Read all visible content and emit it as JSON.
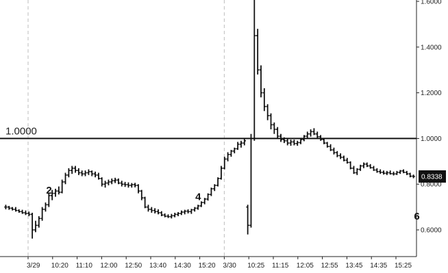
{
  "chart_data": {
    "type": "ohlc",
    "title": "",
    "xlabel": "",
    "ylabel": "",
    "ylim": [
      0.55,
      1.62
    ],
    "y_ticks": [
      {
        "value": 1.6,
        "label": "1.6000"
      },
      {
        "value": 1.4,
        "label": "1.4000"
      },
      {
        "value": 1.2,
        "label": "1.2000"
      },
      {
        "value": 1.0,
        "label": "1.0000"
      },
      {
        "value": 0.8,
        "label": "0.8000"
      },
      {
        "value": 0.6,
        "label": "0.6000"
      }
    ],
    "x_ticks": [
      "3/29",
      "10:20",
      "11:10",
      "12:00",
      "12:50",
      "13:40",
      "14:30",
      "15:20",
      "3/30",
      "10:25",
      "11:15",
      "12:05",
      "12:55",
      "13:45",
      "14:35",
      "15:25"
    ],
    "session_breaks": [
      "3/29",
      "3/30"
    ],
    "reference_line": {
      "value": 1.0,
      "label": "1.0000"
    },
    "last_price": {
      "value": 0.8338,
      "label": "0.8338"
    },
    "wave_labels": [
      {
        "text": "2",
        "x": 13,
        "y": 0.758
      },
      {
        "text": "4",
        "x": 58,
        "y": 0.73
      },
      {
        "text": "6",
        "x": 124,
        "y": 0.645
      }
    ],
    "grid": false,
    "colors": {
      "bars": "#111111",
      "reference_line": "#111111",
      "session_break": "#bdbdbd",
      "price_box": "#111111"
    },
    "bars": [
      {
        "o": 0.7,
        "h": 0.71,
        "l": 0.69,
        "c": 0.7
      },
      {
        "o": 0.7,
        "h": 0.705,
        "l": 0.688,
        "c": 0.695
      },
      {
        "o": 0.695,
        "h": 0.7,
        "l": 0.685,
        "c": 0.69
      },
      {
        "o": 0.69,
        "h": 0.7,
        "l": 0.68,
        "c": 0.685
      },
      {
        "o": 0.685,
        "h": 0.69,
        "l": 0.675,
        "c": 0.68
      },
      {
        "o": 0.68,
        "h": 0.688,
        "l": 0.67,
        "c": 0.675
      },
      {
        "o": 0.675,
        "h": 0.685,
        "l": 0.665,
        "c": 0.672
      },
      {
        "o": 0.672,
        "h": 0.68,
        "l": 0.66,
        "c": 0.668
      },
      {
        "o": 0.668,
        "h": 0.675,
        "l": 0.562,
        "c": 0.6
      },
      {
        "o": 0.6,
        "h": 0.64,
        "l": 0.59,
        "c": 0.62
      },
      {
        "o": 0.62,
        "h": 0.66,
        "l": 0.61,
        "c": 0.65
      },
      {
        "o": 0.65,
        "h": 0.7,
        "l": 0.64,
        "c": 0.69
      },
      {
        "o": 0.69,
        "h": 0.72,
        "l": 0.68,
        "c": 0.71
      },
      {
        "o": 0.71,
        "h": 0.76,
        "l": 0.7,
        "c": 0.75
      },
      {
        "o": 0.75,
        "h": 0.775,
        "l": 0.73,
        "c": 0.76
      },
      {
        "o": 0.76,
        "h": 0.78,
        "l": 0.745,
        "c": 0.77
      },
      {
        "o": 0.77,
        "h": 0.79,
        "l": 0.755,
        "c": 0.765
      },
      {
        "o": 0.765,
        "h": 0.82,
        "l": 0.76,
        "c": 0.81
      },
      {
        "o": 0.81,
        "h": 0.85,
        "l": 0.8,
        "c": 0.84
      },
      {
        "o": 0.84,
        "h": 0.87,
        "l": 0.83,
        "c": 0.86
      },
      {
        "o": 0.86,
        "h": 0.88,
        "l": 0.845,
        "c": 0.87
      },
      {
        "o": 0.87,
        "h": 0.88,
        "l": 0.85,
        "c": 0.86
      },
      {
        "o": 0.86,
        "h": 0.87,
        "l": 0.84,
        "c": 0.85
      },
      {
        "o": 0.85,
        "h": 0.86,
        "l": 0.835,
        "c": 0.845
      },
      {
        "o": 0.845,
        "h": 0.86,
        "l": 0.835,
        "c": 0.85
      },
      {
        "o": 0.85,
        "h": 0.865,
        "l": 0.84,
        "c": 0.855
      },
      {
        "o": 0.855,
        "h": 0.86,
        "l": 0.835,
        "c": 0.845
      },
      {
        "o": 0.845,
        "h": 0.855,
        "l": 0.83,
        "c": 0.84
      },
      {
        "o": 0.84,
        "h": 0.85,
        "l": 0.82,
        "c": 0.825
      },
      {
        "o": 0.825,
        "h": 0.83,
        "l": 0.79,
        "c": 0.8
      },
      {
        "o": 0.8,
        "h": 0.815,
        "l": 0.785,
        "c": 0.805
      },
      {
        "o": 0.805,
        "h": 0.82,
        "l": 0.795,
        "c": 0.81
      },
      {
        "o": 0.81,
        "h": 0.825,
        "l": 0.8,
        "c": 0.815
      },
      {
        "o": 0.815,
        "h": 0.828,
        "l": 0.805,
        "c": 0.818
      },
      {
        "o": 0.818,
        "h": 0.825,
        "l": 0.8,
        "c": 0.805
      },
      {
        "o": 0.805,
        "h": 0.815,
        "l": 0.79,
        "c": 0.8
      },
      {
        "o": 0.8,
        "h": 0.81,
        "l": 0.788,
        "c": 0.798
      },
      {
        "o": 0.798,
        "h": 0.808,
        "l": 0.785,
        "c": 0.795
      },
      {
        "o": 0.795,
        "h": 0.805,
        "l": 0.785,
        "c": 0.798
      },
      {
        "o": 0.798,
        "h": 0.806,
        "l": 0.786,
        "c": 0.795
      },
      {
        "o": 0.795,
        "h": 0.8,
        "l": 0.76,
        "c": 0.77
      },
      {
        "o": 0.77,
        "h": 0.775,
        "l": 0.73,
        "c": 0.74
      },
      {
        "o": 0.74,
        "h": 0.745,
        "l": 0.695,
        "c": 0.7
      },
      {
        "o": 0.7,
        "h": 0.71,
        "l": 0.68,
        "c": 0.69
      },
      {
        "o": 0.69,
        "h": 0.7,
        "l": 0.675,
        "c": 0.685
      },
      {
        "o": 0.685,
        "h": 0.695,
        "l": 0.672,
        "c": 0.68
      },
      {
        "o": 0.68,
        "h": 0.69,
        "l": 0.668,
        "c": 0.675
      },
      {
        "o": 0.675,
        "h": 0.682,
        "l": 0.66,
        "c": 0.665
      },
      {
        "o": 0.665,
        "h": 0.672,
        "l": 0.655,
        "c": 0.66
      },
      {
        "o": 0.66,
        "h": 0.668,
        "l": 0.652,
        "c": 0.658
      },
      {
        "o": 0.658,
        "h": 0.67,
        "l": 0.65,
        "c": 0.662
      },
      {
        "o": 0.662,
        "h": 0.675,
        "l": 0.655,
        "c": 0.668
      },
      {
        "o": 0.668,
        "h": 0.678,
        "l": 0.66,
        "c": 0.672
      },
      {
        "o": 0.672,
        "h": 0.685,
        "l": 0.665,
        "c": 0.678
      },
      {
        "o": 0.678,
        "h": 0.688,
        "l": 0.668,
        "c": 0.682
      },
      {
        "o": 0.682,
        "h": 0.69,
        "l": 0.672,
        "c": 0.68
      },
      {
        "o": 0.68,
        "h": 0.692,
        "l": 0.67,
        "c": 0.688
      },
      {
        "o": 0.688,
        "h": 0.7,
        "l": 0.68,
        "c": 0.695
      },
      {
        "o": 0.695,
        "h": 0.71,
        "l": 0.688,
        "c": 0.705
      },
      {
        "o": 0.705,
        "h": 0.725,
        "l": 0.7,
        "c": 0.72
      },
      {
        "o": 0.72,
        "h": 0.74,
        "l": 0.712,
        "c": 0.735
      },
      {
        "o": 0.735,
        "h": 0.76,
        "l": 0.728,
        "c": 0.755
      },
      {
        "o": 0.755,
        "h": 0.785,
        "l": 0.748,
        "c": 0.78
      },
      {
        "o": 0.78,
        "h": 0.8,
        "l": 0.77,
        "c": 0.795
      },
      {
        "o": 0.795,
        "h": 0.83,
        "l": 0.79,
        "c": 0.825
      },
      {
        "o": 0.825,
        "h": 0.88,
        "l": 0.82,
        "c": 0.87
      },
      {
        "o": 0.87,
        "h": 0.92,
        "l": 0.865,
        "c": 0.91
      },
      {
        "o": 0.91,
        "h": 0.94,
        "l": 0.9,
        "c": 0.93
      },
      {
        "o": 0.93,
        "h": 0.95,
        "l": 0.92,
        "c": 0.945
      },
      {
        "o": 0.945,
        "h": 0.96,
        "l": 0.935,
        "c": 0.955
      },
      {
        "o": 0.955,
        "h": 0.985,
        "l": 0.95,
        "c": 0.975
      },
      {
        "o": 0.975,
        "h": 0.99,
        "l": 0.96,
        "c": 0.98
      },
      {
        "o": 0.98,
        "h": 1.0,
        "l": 0.97,
        "c": 0.99
      },
      {
        "o": 0.7,
        "h": 0.71,
        "l": 0.58,
        "c": 0.62
      },
      {
        "o": 0.62,
        "h": 1.02,
        "l": 0.61,
        "c": 1.0
      },
      {
        "o": 1.0,
        "h": 1.62,
        "l": 0.99,
        "c": 1.45
      },
      {
        "o": 1.45,
        "h": 1.48,
        "l": 1.28,
        "c": 1.3
      },
      {
        "o": 1.3,
        "h": 1.32,
        "l": 1.18,
        "c": 1.2
      },
      {
        "o": 1.2,
        "h": 1.22,
        "l": 1.12,
        "c": 1.14
      },
      {
        "o": 1.14,
        "h": 1.15,
        "l": 1.08,
        "c": 1.1
      },
      {
        "o": 1.1,
        "h": 1.11,
        "l": 1.04,
        "c": 1.06
      },
      {
        "o": 1.06,
        "h": 1.07,
        "l": 1.02,
        "c": 1.04
      },
      {
        "o": 1.04,
        "h": 1.05,
        "l": 1.0,
        "c": 1.01
      },
      {
        "o": 1.01,
        "h": 1.02,
        "l": 0.985,
        "c": 0.995
      },
      {
        "o": 0.995,
        "h": 1.005,
        "l": 0.98,
        "c": 0.99
      },
      {
        "o": 0.99,
        "h": 1.0,
        "l": 0.97,
        "c": 0.98
      },
      {
        "o": 0.98,
        "h": 0.995,
        "l": 0.968,
        "c": 0.985
      },
      {
        "o": 0.985,
        "h": 0.995,
        "l": 0.97,
        "c": 0.978
      },
      {
        "o": 0.978,
        "h": 0.99,
        "l": 0.968,
        "c": 0.982
      },
      {
        "o": 0.982,
        "h": 1.0,
        "l": 0.975,
        "c": 0.995
      },
      {
        "o": 0.995,
        "h": 1.015,
        "l": 0.988,
        "c": 1.01
      },
      {
        "o": 1.01,
        "h": 1.03,
        "l": 1.0,
        "c": 1.02
      },
      {
        "o": 1.02,
        "h": 1.04,
        "l": 1.008,
        "c": 1.03
      },
      {
        "o": 1.03,
        "h": 1.045,
        "l": 1.015,
        "c": 1.02
      },
      {
        "o": 1.02,
        "h": 1.03,
        "l": 1.0,
        "c": 1.008
      },
      {
        "o": 1.008,
        "h": 1.015,
        "l": 0.99,
        "c": 0.995
      },
      {
        "o": 0.995,
        "h": 1.0,
        "l": 0.975,
        "c": 0.98
      },
      {
        "o": 0.98,
        "h": 0.985,
        "l": 0.96,
        "c": 0.965
      },
      {
        "o": 0.965,
        "h": 0.975,
        "l": 0.945,
        "c": 0.95
      },
      {
        "o": 0.95,
        "h": 0.96,
        "l": 0.93,
        "c": 0.938
      },
      {
        "o": 0.938,
        "h": 0.945,
        "l": 0.918,
        "c": 0.925
      },
      {
        "o": 0.925,
        "h": 0.935,
        "l": 0.91,
        "c": 0.918
      },
      {
        "o": 0.918,
        "h": 0.925,
        "l": 0.9,
        "c": 0.905
      },
      {
        "o": 0.905,
        "h": 0.915,
        "l": 0.89,
        "c": 0.895
      },
      {
        "o": 0.895,
        "h": 0.9,
        "l": 0.865,
        "c": 0.87
      },
      {
        "o": 0.87,
        "h": 0.88,
        "l": 0.845,
        "c": 0.85
      },
      {
        "o": 0.85,
        "h": 0.87,
        "l": 0.84,
        "c": 0.865
      },
      {
        "o": 0.865,
        "h": 0.885,
        "l": 0.858,
        "c": 0.88
      },
      {
        "o": 0.88,
        "h": 0.895,
        "l": 0.87,
        "c": 0.888
      },
      {
        "o": 0.888,
        "h": 0.895,
        "l": 0.875,
        "c": 0.88
      },
      {
        "o": 0.88,
        "h": 0.888,
        "l": 0.868,
        "c": 0.872
      },
      {
        "o": 0.872,
        "h": 0.88,
        "l": 0.858,
        "c": 0.862
      },
      {
        "o": 0.862,
        "h": 0.87,
        "l": 0.85,
        "c": 0.855
      },
      {
        "o": 0.855,
        "h": 0.865,
        "l": 0.845,
        "c": 0.852
      },
      {
        "o": 0.852,
        "h": 0.86,
        "l": 0.842,
        "c": 0.848
      },
      {
        "o": 0.848,
        "h": 0.858,
        "l": 0.84,
        "c": 0.85
      },
      {
        "o": 0.85,
        "h": 0.86,
        "l": 0.842,
        "c": 0.846
      },
      {
        "o": 0.846,
        "h": 0.855,
        "l": 0.838,
        "c": 0.845
      },
      {
        "o": 0.845,
        "h": 0.858,
        "l": 0.84,
        "c": 0.852
      },
      {
        "o": 0.852,
        "h": 0.862,
        "l": 0.845,
        "c": 0.858
      },
      {
        "o": 0.858,
        "h": 0.865,
        "l": 0.848,
        "c": 0.852
      },
      {
        "o": 0.852,
        "h": 0.858,
        "l": 0.84,
        "c": 0.845
      },
      {
        "o": 0.845,
        "h": 0.85,
        "l": 0.83,
        "c": 0.835
      },
      {
        "o": 0.835,
        "h": 0.842,
        "l": 0.826,
        "c": 0.834
      }
    ]
  }
}
